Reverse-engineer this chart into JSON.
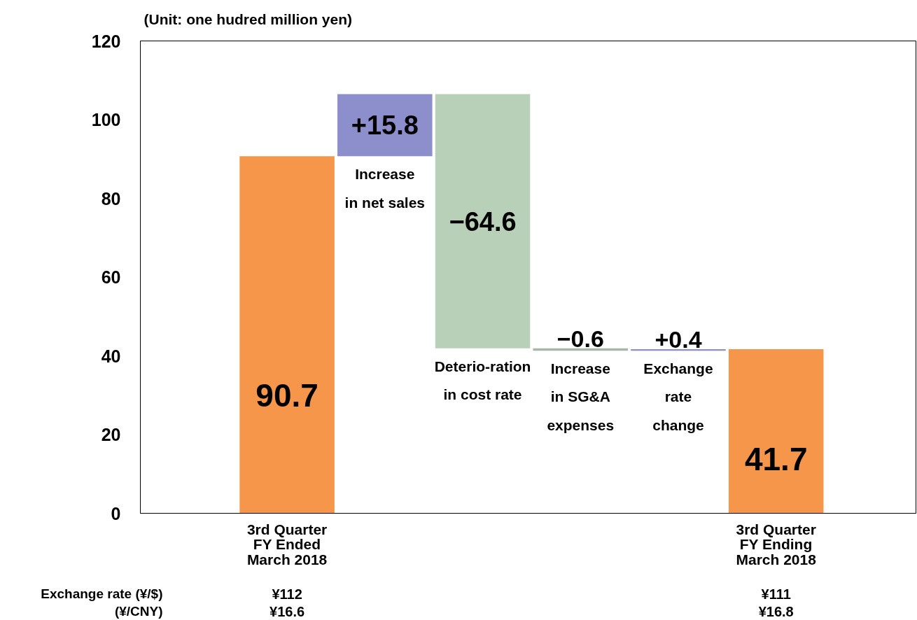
{
  "chart_data": {
    "type": "bar",
    "categories": [
      "3rd Quarter\nFY Ended\nMarch 2018",
      "Increase\nin net sales",
      "Deterio-ration\nin cost rate",
      "Increase\nin SG&A\nexpenses",
      "Exchange\nrate\nchange",
      "3rd Quarter\nFY Ending\nMarch 2018"
    ],
    "values": [
      90.7,
      15.8,
      -64.6,
      -0.6,
      0.4,
      41.7
    ],
    "base": [
      0,
      90.7,
      106.5,
      41.9,
      41.3,
      0
    ],
    "colors": [
      "#f5964a",
      "#8c8fcc",
      "#b8cfb8",
      "#a8b8a8",
      "#8c8fcc",
      "#f5964a"
    ],
    "value_labels": [
      "90.7",
      "+15.8",
      "−64.6",
      "−0.6",
      "+0.4",
      "41.7"
    ],
    "ylim": [
      0,
      120
    ],
    "yticks": [
      0,
      20,
      40,
      60,
      80,
      100,
      120
    ],
    "annotations": [
      "(Unit: one hudred million yen)",
      "Exchange rate (¥/$)",
      "(¥/CNY)",
      "¥112",
      "¥16.6",
      "¥111",
      "¥16.8"
    ]
  }
}
